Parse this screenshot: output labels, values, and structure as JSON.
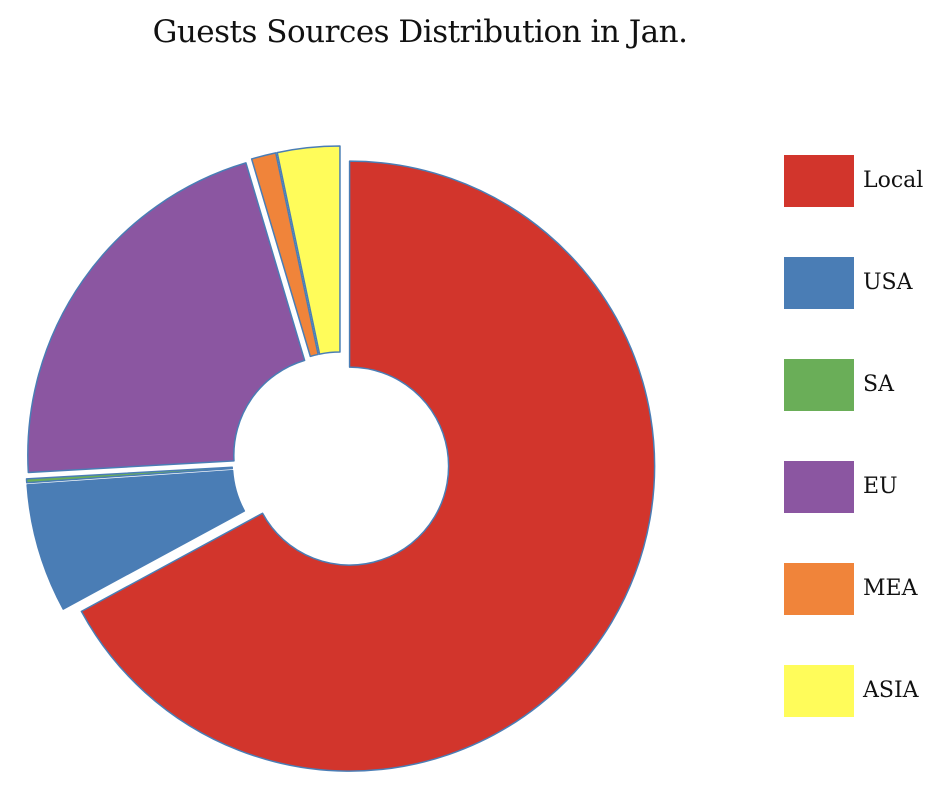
{
  "chart_data": {
    "type": "pie",
    "variant": "exploded-donut",
    "title": "Guests Sources Distribution in  Jan.",
    "legend_position": "right",
    "categories": [
      "Local",
      "USA",
      "SA",
      "EU",
      "MEA",
      "ASIA"
    ],
    "values": [
      67.1,
      6.8,
      0.2,
      21.3,
      1.3,
      3.3
    ],
    "colors": [
      "#d2352c",
      "#4a7db5",
      "#6aae58",
      "#8b56a1",
      "#f0843a",
      "#fffc5a"
    ]
  }
}
